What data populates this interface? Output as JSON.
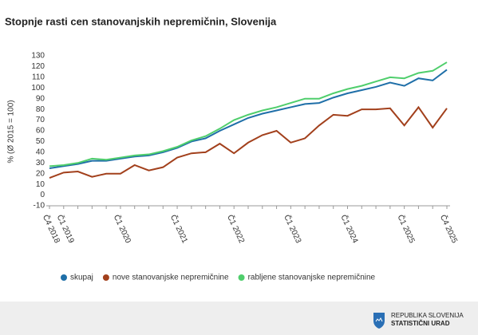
{
  "chart_data": {
    "type": "line",
    "title": "Stopnje rasti cen stanovanjskih nepremičnin, Slovenija",
    "y_label": "% (Ø 2015 = 100)",
    "categories": [
      "Č4 2018",
      "Č1 2019",
      null,
      null,
      null,
      "Č1 2020",
      null,
      null,
      null,
      "Č1 2021",
      null,
      null,
      null,
      "Č1 2022",
      null,
      null,
      null,
      "Č1 2023",
      null,
      null,
      null,
      "Č1 2024",
      null,
      null,
      null,
      "Č1 2025",
      null,
      null,
      "Č4 2025"
    ],
    "series": [
      {
        "name": "skupaj",
        "color": "#1f6fa8",
        "values": [
          25,
          27,
          29,
          32,
          32,
          34,
          36,
          37,
          40,
          44,
          50,
          53,
          60,
          66,
          72,
          76,
          79,
          82,
          85,
          86,
          91,
          95,
          98,
          101,
          105,
          102,
          109,
          107,
          117
        ]
      },
      {
        "name": "nove stanovanjske nepremičnine",
        "color": "#a2401c",
        "values": [
          16,
          21,
          22,
          17,
          20,
          20,
          28,
          23,
          26,
          35,
          39,
          40,
          48,
          39,
          49,
          56,
          60,
          49,
          53,
          65,
          75,
          74,
          80,
          80,
          81,
          65,
          82,
          63,
          81
        ]
      },
      {
        "name": "rabljene stanovanjske nepremičnine",
        "color": "#4fce6c",
        "values": [
          27,
          28,
          30,
          34,
          33,
          35,
          37,
          38,
          41,
          45,
          51,
          55,
          62,
          70,
          75,
          79,
          82,
          86,
          90,
          90,
          95,
          99,
          102,
          106,
          110,
          109,
          114,
          116,
          124
        ]
      }
    ],
    "ylim": [
      -10,
      130
    ],
    "yticks": [
      -10,
      0,
      10,
      20,
      30,
      40,
      50,
      60,
      70,
      80,
      90,
      100,
      110,
      120,
      130
    ],
    "grid": false
  },
  "footer": {
    "line1": "REPUBLIKA SLOVENIJA",
    "line2": "STATISTIČNI URAD"
  }
}
